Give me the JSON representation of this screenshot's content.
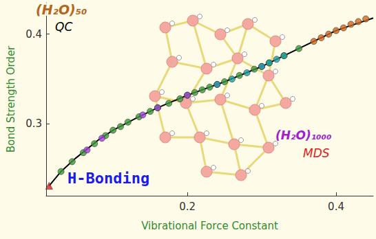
{
  "chart_data": {
    "type": "scatter",
    "x_label": "Vibrational Force Constant",
    "y_label": "Bond Strength Order",
    "xlim": [
      0.01,
      0.45
    ],
    "ylim": [
      0.22,
      0.435
    ],
    "xticks": [
      0.2,
      0.4
    ],
    "yticks": [
      0.3,
      0.4
    ],
    "grid": false,
    "series": [
      {
        "type": "line",
        "color": "#000000",
        "marker": "none",
        "line_style": "solid",
        "x": [
          0.014,
          0.03,
          0.05,
          0.08,
          0.1,
          0.13,
          0.16,
          0.2,
          0.25,
          0.3,
          0.35,
          0.4,
          0.45
        ],
        "values": [
          0.231,
          0.247,
          0.262,
          0.282,
          0.293,
          0.306,
          0.318,
          0.332,
          0.347,
          0.364,
          0.384,
          0.404,
          0.418
        ]
      },
      {
        "type": "scatter",
        "color": "#3c9a3c",
        "marker": "circle",
        "x": [
          0.03,
          0.045,
          0.06,
          0.075,
          0.09,
          0.1,
          0.11,
          0.12,
          0.135,
          0.15,
          0.16,
          0.175,
          0.19,
          0.2,
          0.21,
          0.22,
          0.23,
          0.25,
          0.27,
          0.29,
          0.31,
          0.33,
          0.35
        ],
        "values": [
          0.247,
          0.258,
          0.268,
          0.278,
          0.287,
          0.293,
          0.297,
          0.302,
          0.308,
          0.314,
          0.318,
          0.323,
          0.328,
          0.332,
          0.335,
          0.338,
          0.341,
          0.347,
          0.354,
          0.361,
          0.368,
          0.376,
          0.384
        ]
      },
      {
        "type": "scatter",
        "color": "#a040e0",
        "marker": "circle",
        "x": [
          0.065,
          0.085,
          0.14,
          0.16,
          0.2,
          0.24,
          0.3
        ],
        "values": [
          0.271,
          0.284,
          0.31,
          0.318,
          0.332,
          0.344,
          0.364
        ]
      },
      {
        "type": "scatter",
        "color": "#1aa3a3",
        "marker": "circle",
        "x": [
          0.24,
          0.26,
          0.28,
          0.3,
          0.31,
          0.32,
          0.33
        ],
        "values": [
          0.344,
          0.35,
          0.357,
          0.364,
          0.368,
          0.372,
          0.376
        ]
      },
      {
        "type": "scatter",
        "color": "#d2691e",
        "marker": "circle",
        "x": [
          0.37,
          0.38,
          0.39,
          0.4,
          0.41,
          0.42,
          0.43,
          0.44
        ],
        "values": [
          0.392,
          0.396,
          0.4,
          0.404,
          0.407,
          0.411,
          0.414,
          0.417
        ]
      },
      {
        "type": "scatter",
        "color": "#e02020",
        "marker": "triangle",
        "x": [
          0.014
        ],
        "values": [
          0.231
        ]
      }
    ],
    "annotations": [
      {
        "text": "(H₂O)₅₀",
        "color": "#b5651d"
      },
      {
        "text": "QC",
        "color": "#000000"
      },
      {
        "text": "(H₂O)₁₀₀₀",
        "color": "#a020d0"
      },
      {
        "text": "MDS",
        "color": "#e02020"
      },
      {
        "text": "H-Bonding",
        "color": "#1a1aee"
      }
    ]
  }
}
